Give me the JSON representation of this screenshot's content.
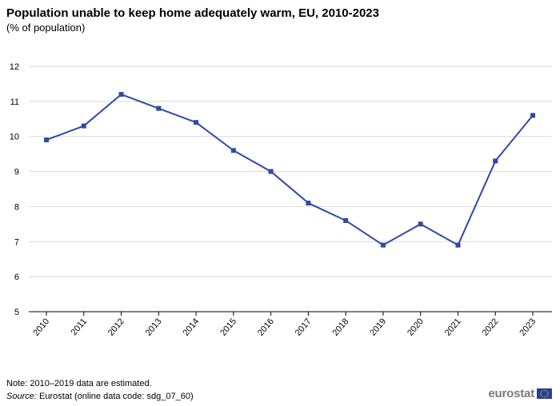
{
  "chart_data": {
    "type": "line",
    "title": "Population unable to keep home adequately warm, EU, 2010-2023",
    "subtitle": "(% of population)",
    "categories": [
      "2010",
      "2011",
      "2012",
      "2013",
      "2014",
      "2015",
      "2016",
      "2017",
      "2018",
      "2019",
      "2020",
      "2021",
      "2022",
      "2023"
    ],
    "series": [
      {
        "values": [
          9.9,
          10.3,
          11.2,
          10.8,
          10.4,
          9.6,
          9.0,
          8.1,
          7.6,
          6.9,
          7.5,
          6.9,
          9.3,
          10.6
        ]
      }
    ],
    "ylim": [
      5,
      12
    ],
    "yticks": [
      5,
      6,
      7,
      8,
      9,
      10,
      11,
      12
    ],
    "grid": "horizontal",
    "legend": "none",
    "line_color": "#2e49a8"
  },
  "note": "Note: 2010–2019 data are estimated.",
  "source": {
    "label": "Source:",
    "text": " Eurostat (online data code: sdg_07_60)"
  },
  "logo": {
    "text": "eurostat",
    "icon": "eu-flag-icon"
  }
}
